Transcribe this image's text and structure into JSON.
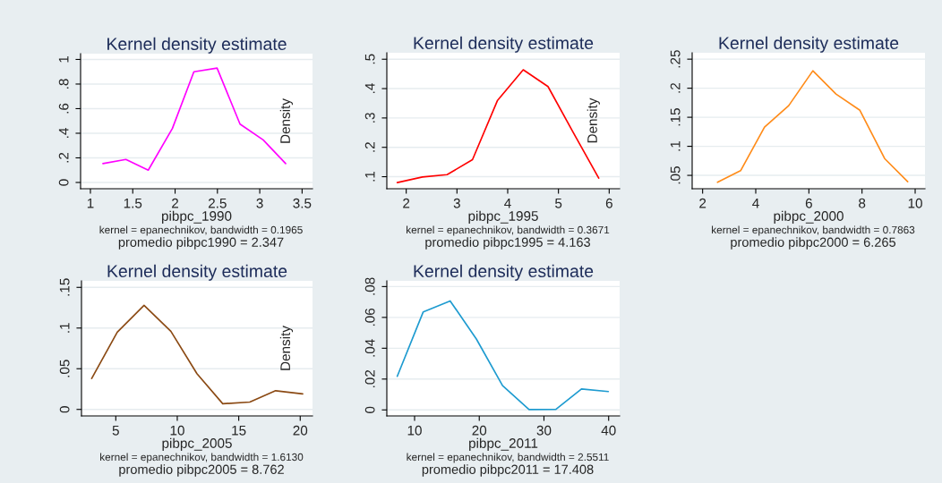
{
  "chart_data": [
    {
      "type": "line",
      "title": "Kernel density estimate",
      "xlabel": "pibpc_1990",
      "ylabel": "Density",
      "annotations": [
        "kernel = epanechnikov, bandwidth = 0.1965",
        "promedio pibpc1990 = 2.347"
      ],
      "series": [
        {
          "color": "#ff00ff",
          "x": [
            1.148,
            1.419,
            1.683,
            1.968,
            2.222,
            2.496,
            2.767,
            3.04,
            3.306
          ],
          "values": [
            0.154,
            0.187,
            0.1,
            0.439,
            0.9,
            0.93,
            0.474,
            0.346,
            0.154
          ]
        }
      ],
      "xlim": [
        0.884,
        3.623
      ],
      "ylim": [
        -0.051,
        1.047
      ],
      "xticks": [
        1,
        1.5,
        2,
        2.5,
        3,
        3.5
      ],
      "yticks": [
        {
          "value": 0,
          "label": "0"
        },
        {
          "value": 0.2,
          "label": ".2"
        },
        {
          "value": 0.4,
          "label": ".4"
        },
        {
          "value": 0.6,
          "label": ".6"
        },
        {
          "value": 0.8,
          "label": ".8"
        },
        {
          "value": 1,
          "label": "1"
        }
      ],
      "grid": "y",
      "legend": false
    },
    {
      "type": "line",
      "title": "Kernel density estimate",
      "xlabel": "pibpc_1995",
      "ylabel": "Density",
      "annotations": [
        "kernel = epanechnikov, bandwidth = 0.3671",
        "promedio pibpc1995 = 4.163"
      ],
      "series": [
        {
          "color": "#ff0000",
          "x": [
            1.824,
            2.32,
            2.806,
            3.306,
            3.8,
            4.306,
            4.794,
            5.294,
            5.794
          ],
          "values": [
            0.08,
            0.099,
            0.107,
            0.158,
            0.36,
            0.464,
            0.407,
            0.25,
            0.095
          ]
        }
      ],
      "xlim": [
        1.618,
        6.206
      ],
      "ylim": [
        0.059,
        0.522
      ],
      "xticks": [
        2,
        3,
        4,
        5,
        6
      ],
      "yticks": [
        {
          "value": 0.1,
          "label": ".1"
        },
        {
          "value": 0.2,
          "label": ".2"
        },
        {
          "value": 0.3,
          "label": ".3"
        },
        {
          "value": 0.4,
          "label": ".4"
        },
        {
          "value": 0.5,
          "label": ".5"
        }
      ],
      "grid": "y",
      "legend": false
    },
    {
      "type": "line",
      "title": "Kernel density estimate",
      "xlabel": "pibpc_2000",
      "annotations": [
        "kernel = epanechnikov, bandwidth = 0.7863",
        "promedio pibpc2000 = 6.265"
      ],
      "series": [
        {
          "color": "#ff8c1a",
          "x": [
            2.56,
            3.43,
            4.33,
            5.24,
            6.15,
            7.02,
            7.92,
            8.85,
            9.72
          ],
          "values": [
            0.038,
            0.058,
            0.133,
            0.17,
            0.23,
            0.19,
            0.162,
            0.079,
            0.039
          ]
        }
      ],
      "xlim": [
        1.607,
        10.37
      ],
      "ylim": [
        0.027,
        0.261
      ],
      "xticks": [
        2,
        4,
        6,
        8,
        10
      ],
      "yticks": [
        {
          "value": 0.05,
          "label": ".05"
        },
        {
          "value": 0.1,
          "label": ".1"
        },
        {
          "value": 0.15,
          "label": ".15"
        },
        {
          "value": 0.2,
          "label": ".2"
        },
        {
          "value": 0.25,
          "label": ".25"
        }
      ],
      "grid": "y",
      "legend": false
    },
    {
      "type": "line",
      "title": "Kernel density estimate",
      "xlabel": "pibpc_2005",
      "ylabel": "Density",
      "annotations": [
        "kernel = epanechnikov, bandwidth = 1.6130",
        "promedio pibpc2005 = 8.762"
      ],
      "series": [
        {
          "color": "#8b4a14",
          "x": [
            3.04,
            5.12,
            7.3,
            9.48,
            11.6,
            13.7,
            15.9,
            18.0,
            20.2
          ],
          "values": [
            0.038,
            0.095,
            0.128,
            0.096,
            0.044,
            0.007,
            0.009,
            0.023,
            0.019
          ]
        }
      ],
      "xlim": [
        2.21,
        21.0
      ],
      "ylim": [
        -0.008,
        0.158
      ],
      "xticks": [
        5,
        10,
        15,
        20
      ],
      "yticks": [
        {
          "value": 0,
          "label": "0"
        },
        {
          "value": 0.05,
          "label": ".05"
        },
        {
          "value": 0.1,
          "label": ".1"
        },
        {
          "value": 0.15,
          "label": ".15"
        }
      ],
      "grid": "y",
      "legend": false
    },
    {
      "type": "line",
      "title": "Kernel density estimate",
      "xlabel": "pibpc_2011",
      "annotations": [
        "kernel = epanechnikov, bandwidth = 2.5511",
        "promedio pibpc2011 = 17.408"
      ],
      "series": [
        {
          "color": "#1e9bd0",
          "x": [
            7.32,
            11.34,
            15.5,
            19.55,
            23.6,
            27.7,
            31.85,
            35.8,
            39.95
          ],
          "values": [
            0.0218,
            0.0636,
            0.0707,
            0.046,
            0.0157,
            0.0002,
            0.0004,
            0.0136,
            0.0119
          ]
        }
      ],
      "xlim": [
        5.71,
        41.7
      ],
      "ylim": [
        -0.0039,
        0.0837
      ],
      "xticks": [
        10,
        20,
        30,
        40
      ],
      "yticks": [
        {
          "value": 0,
          "label": "0"
        },
        {
          "value": 0.02,
          "label": ".02"
        },
        {
          "value": 0.04,
          "label": ".04"
        },
        {
          "value": 0.06,
          "label": ".06"
        },
        {
          "value": 0.08,
          "label": ".08"
        }
      ],
      "grid": "y",
      "legend": false
    }
  ]
}
